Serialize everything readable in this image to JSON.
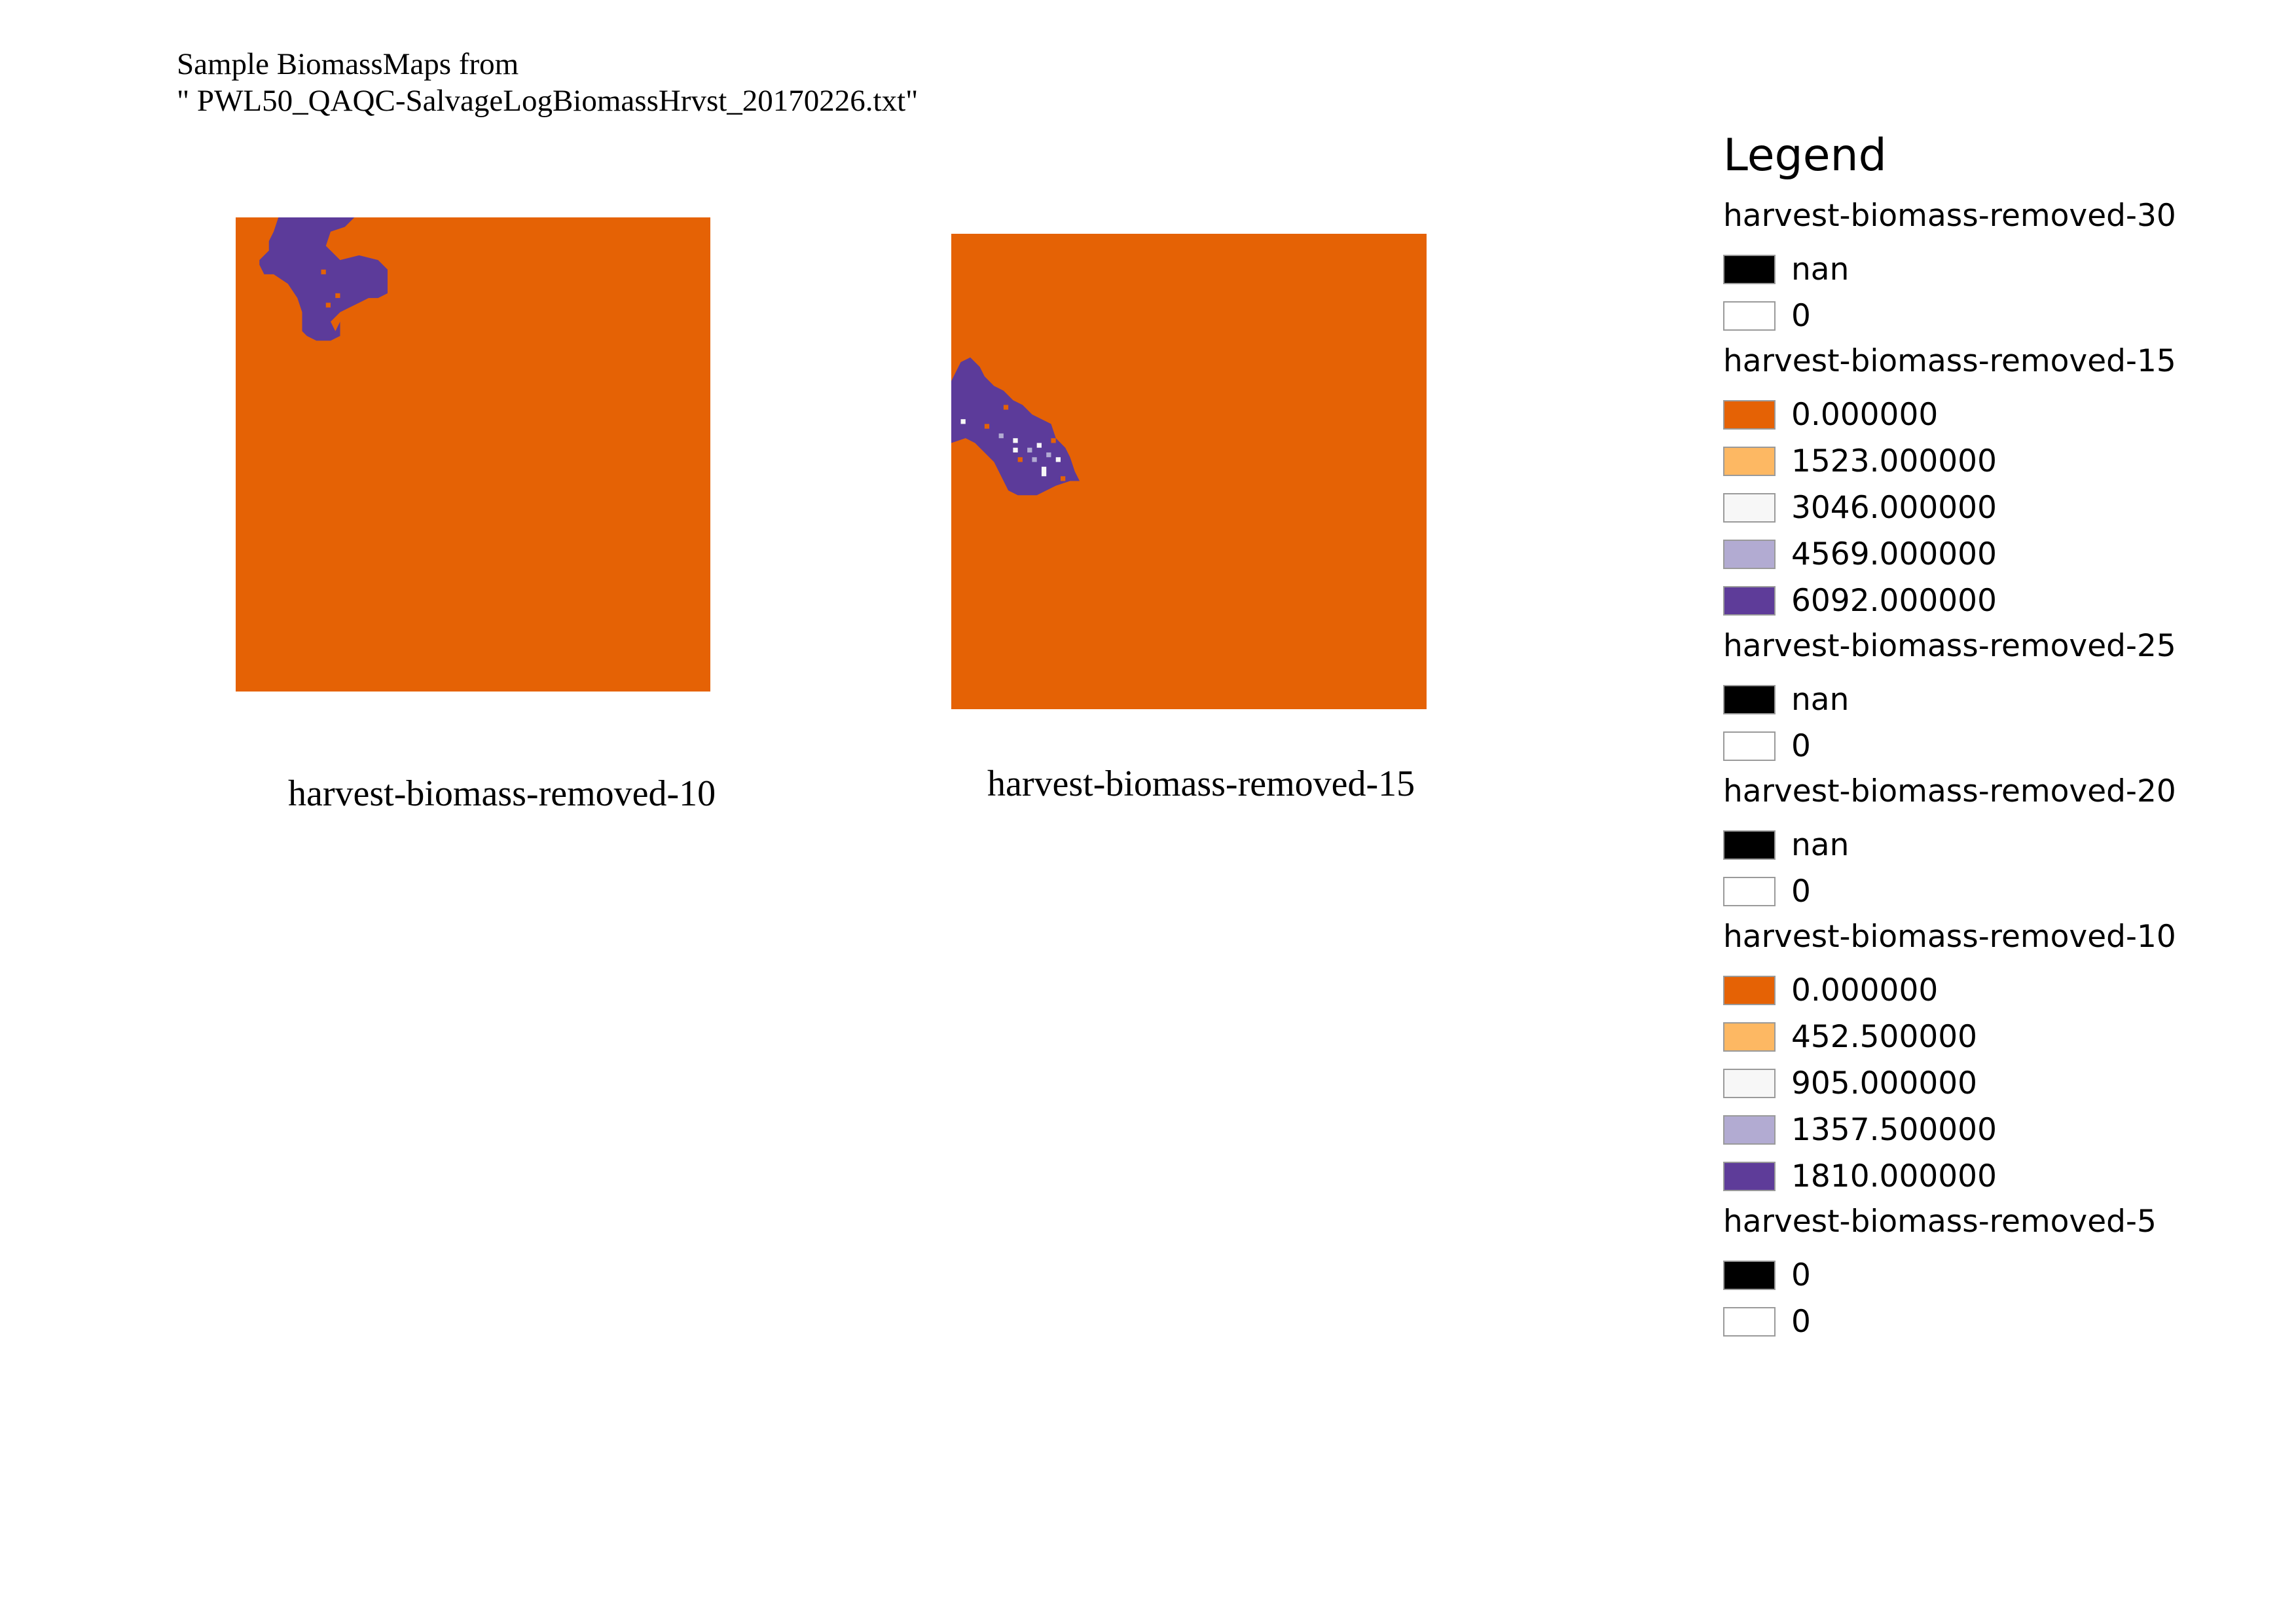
{
  "title": {
    "line1": "Sample BiomassMaps from",
    "line2": "\" PWL50_QAQC-SalvageLogBiomassHrvst_20170226.txt\""
  },
  "maps": [
    {
      "id": "map-left",
      "caption": "harvest-biomass-removed-10",
      "background_color": "#e56205",
      "patch_color": "#5c3b9a"
    },
    {
      "id": "map-right",
      "caption": "harvest-biomass-removed-15",
      "background_color": "#e56205",
      "patch_color": "#5c3b9a"
    }
  ],
  "legend": {
    "title": "Legend",
    "groups": [
      {
        "title": "harvest-biomass-removed-30",
        "items": [
          {
            "label": "nan",
            "color": "#000000"
          },
          {
            "label": "0",
            "color": "#ffffff"
          }
        ]
      },
      {
        "title": "harvest-biomass-removed-15",
        "items": [
          {
            "label": "0.000000",
            "color": "#e56205"
          },
          {
            "label": "1523.000000",
            "color": "#fdb863"
          },
          {
            "label": "3046.000000",
            "color": "#f7f7f7"
          },
          {
            "label": "4569.000000",
            "color": "#b2abd2"
          },
          {
            "label": "6092.000000",
            "color": "#5e3c99"
          }
        ]
      },
      {
        "title": "harvest-biomass-removed-25",
        "items": [
          {
            "label": "nan",
            "color": "#000000"
          },
          {
            "label": "0",
            "color": "#ffffff"
          }
        ]
      },
      {
        "title": "harvest-biomass-removed-20",
        "items": [
          {
            "label": "nan",
            "color": "#000000"
          },
          {
            "label": "0",
            "color": "#ffffff"
          }
        ]
      },
      {
        "title": "harvest-biomass-removed-10",
        "items": [
          {
            "label": "0.000000",
            "color": "#e56205"
          },
          {
            "label": "452.500000",
            "color": "#fdb863"
          },
          {
            "label": "905.000000",
            "color": "#f7f7f7"
          },
          {
            "label": "1357.500000",
            "color": "#b2abd2"
          },
          {
            "label": "1810.000000",
            "color": "#5e3c99"
          }
        ]
      },
      {
        "title": "harvest-biomass-removed-5",
        "items": [
          {
            "label": "0",
            "color": "#000000"
          },
          {
            "label": "0",
            "color": "#ffffff"
          }
        ]
      }
    ]
  }
}
